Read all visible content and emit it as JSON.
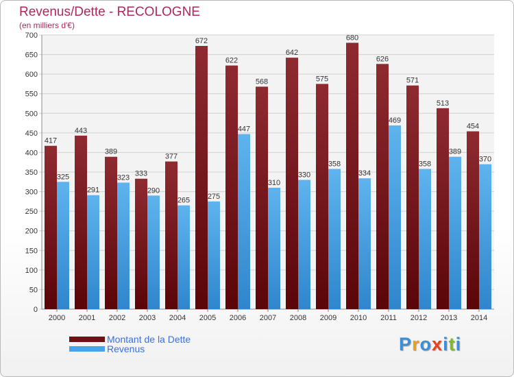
{
  "header": {
    "title": "Revenus/Dette - RECOLOGNE",
    "subtitle": "(en milliers d'€)"
  },
  "chart_data": {
    "type": "bar",
    "title": "Revenus/Dette - RECOLOGNE",
    "ylabel": "(en milliers d'€)",
    "xlabel": "",
    "ylim": [
      0,
      700
    ],
    "ytick_step": 50,
    "grid": true,
    "categories": [
      "2000",
      "2001",
      "2002",
      "2003",
      "2004",
      "2005",
      "2006",
      "2007",
      "2008",
      "2009",
      "2010",
      "2011",
      "2012",
      "2013",
      "2014"
    ],
    "series": [
      {
        "name": "Montant de la Dette",
        "color": "#7b1a1f",
        "values": [
          417,
          443,
          389,
          333,
          377,
          672,
          622,
          568,
          642,
          575,
          680,
          626,
          571,
          513,
          454
        ]
      },
      {
        "name": "Revenus",
        "color": "#4aa3e6",
        "values": [
          325,
          291,
          323,
          290,
          265,
          275,
          447,
          310,
          330,
          358,
          334,
          469,
          358,
          389,
          370
        ]
      }
    ]
  },
  "legend": {
    "items": [
      {
        "label": "Montant de la Dette",
        "color": "#6e1015"
      },
      {
        "label": "Revenus",
        "color": "#4aa3e6"
      }
    ]
  },
  "brand": {
    "letters": [
      {
        "char": "P",
        "color": "#3b8fd6"
      },
      {
        "char": "r",
        "color": "#e8a21c"
      },
      {
        "char": "o",
        "color": "#3b8fd6"
      },
      {
        "char": "x",
        "color": "#e8431c"
      },
      {
        "char": "i",
        "color": "#3b8fd6"
      },
      {
        "char": "t",
        "color": "#7cbc28"
      },
      {
        "char": "i",
        "color": "#3b8fd6"
      }
    ]
  }
}
